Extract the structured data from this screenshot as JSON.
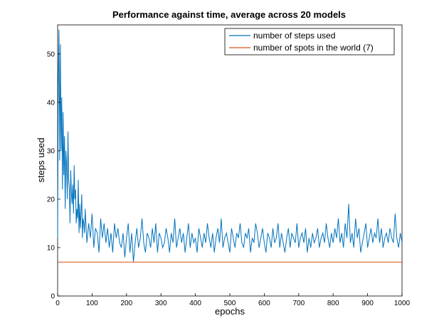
{
  "chart_data": {
    "type": "line",
    "title": "Performance against time, average across 20 models",
    "xlabel": "epochs",
    "ylabel": "steps used",
    "xlim": [
      0,
      1000
    ],
    "ylim": [
      0,
      56
    ],
    "xticks": [
      0,
      100,
      200,
      300,
      400,
      500,
      600,
      700,
      800,
      900,
      1000
    ],
    "yticks": [
      0,
      10,
      20,
      30,
      40,
      50
    ],
    "grid": false,
    "legend_position": "top-right",
    "series": [
      {
        "name": "number of steps used",
        "color": "#0072BD",
        "x": [
          0,
          2,
          4,
          6,
          8,
          10,
          12,
          14,
          16,
          18,
          20,
          22,
          24,
          26,
          28,
          30,
          32,
          34,
          36,
          38,
          40,
          42,
          44,
          46,
          48,
          50,
          52,
          54,
          56,
          58,
          60,
          62,
          64,
          66,
          68,
          70,
          72,
          74,
          76,
          78,
          80,
          85,
          90,
          95,
          100,
          105,
          110,
          115,
          120,
          125,
          130,
          135,
          140,
          145,
          150,
          155,
          160,
          165,
          170,
          175,
          180,
          185,
          190,
          195,
          200,
          205,
          210,
          215,
          220,
          225,
          230,
          235,
          240,
          245,
          250,
          255,
          260,
          265,
          270,
          275,
          280,
          285,
          290,
          295,
          300,
          305,
          310,
          315,
          320,
          325,
          330,
          335,
          340,
          345,
          350,
          355,
          360,
          365,
          370,
          375,
          380,
          385,
          390,
          395,
          400,
          405,
          410,
          415,
          420,
          425,
          430,
          435,
          440,
          445,
          450,
          455,
          460,
          465,
          470,
          475,
          480,
          485,
          490,
          495,
          500,
          505,
          510,
          515,
          520,
          525,
          530,
          535,
          540,
          545,
          550,
          555,
          560,
          565,
          570,
          575,
          580,
          585,
          590,
          595,
          600,
          605,
          610,
          615,
          620,
          625,
          630,
          635,
          640,
          645,
          650,
          655,
          660,
          665,
          670,
          675,
          680,
          685,
          690,
          695,
          700,
          705,
          710,
          715,
          720,
          725,
          730,
          735,
          740,
          745,
          750,
          755,
          760,
          765,
          770,
          775,
          780,
          785,
          790,
          795,
          800,
          805,
          810,
          815,
          820,
          825,
          830,
          835,
          840,
          845,
          850,
          855,
          860,
          865,
          870,
          875,
          880,
          885,
          890,
          895,
          900,
          905,
          910,
          915,
          920,
          925,
          930,
          935,
          940,
          945,
          950,
          955,
          960,
          965,
          970,
          975,
          980,
          985,
          990,
          995,
          1000
        ],
        "values": [
          12,
          45,
          55,
          28,
          52,
          30,
          41,
          22,
          38,
          25,
          33,
          18,
          30,
          27,
          20,
          34,
          24,
          22,
          15,
          26,
          21,
          19,
          23,
          17,
          27,
          20,
          22,
          15,
          18,
          16,
          24,
          13,
          19,
          14,
          17,
          21,
          12,
          16,
          15,
          13,
          18,
          11,
          15,
          12,
          17,
          10,
          14,
          13,
          9,
          16,
          12,
          15,
          11,
          14,
          10,
          13,
          9,
          15,
          12,
          14,
          11,
          10,
          13,
          8,
          12,
          15,
          9,
          13,
          7,
          11,
          14,
          10,
          12,
          16,
          11,
          9,
          13,
          12,
          10,
          14,
          11,
          15,
          9,
          13,
          12,
          10,
          11,
          14,
          12,
          9,
          13,
          11,
          16,
          10,
          12,
          14,
          11,
          13,
          9,
          12,
          15,
          10,
          13,
          11,
          12,
          9,
          14,
          12,
          10,
          13,
          11,
          15,
          12,
          10,
          13,
          9,
          12,
          14,
          11,
          16,
          10,
          12,
          13,
          11,
          9,
          14,
          12,
          10,
          13,
          12,
          15,
          11,
          10,
          13,
          12,
          14,
          9,
          12,
          11,
          15,
          13,
          10,
          12,
          14,
          11,
          9,
          13,
          12,
          10,
          14,
          11,
          12,
          15,
          10,
          13,
          11,
          9,
          12,
          14,
          10,
          13,
          12,
          11,
          15,
          10,
          12,
          13,
          11,
          14,
          9,
          12,
          10,
          13,
          11,
          12,
          14,
          10,
          12,
          13,
          11,
          15,
          12,
          10,
          13,
          11,
          14,
          12,
          16,
          11,
          13,
          10,
          15,
          12,
          19,
          11,
          13,
          10,
          16,
          12,
          14,
          9,
          11,
          13,
          15,
          10,
          12,
          14,
          11,
          13,
          12,
          16,
          11,
          14,
          10,
          12,
          13,
          11,
          14,
          12,
          11,
          17,
          12,
          10,
          13,
          11
        ]
      },
      {
        "name": "number of spots in the world (7)",
        "color": "#D95319",
        "x": [
          0,
          1000
        ],
        "values": [
          7,
          7
        ]
      }
    ]
  }
}
